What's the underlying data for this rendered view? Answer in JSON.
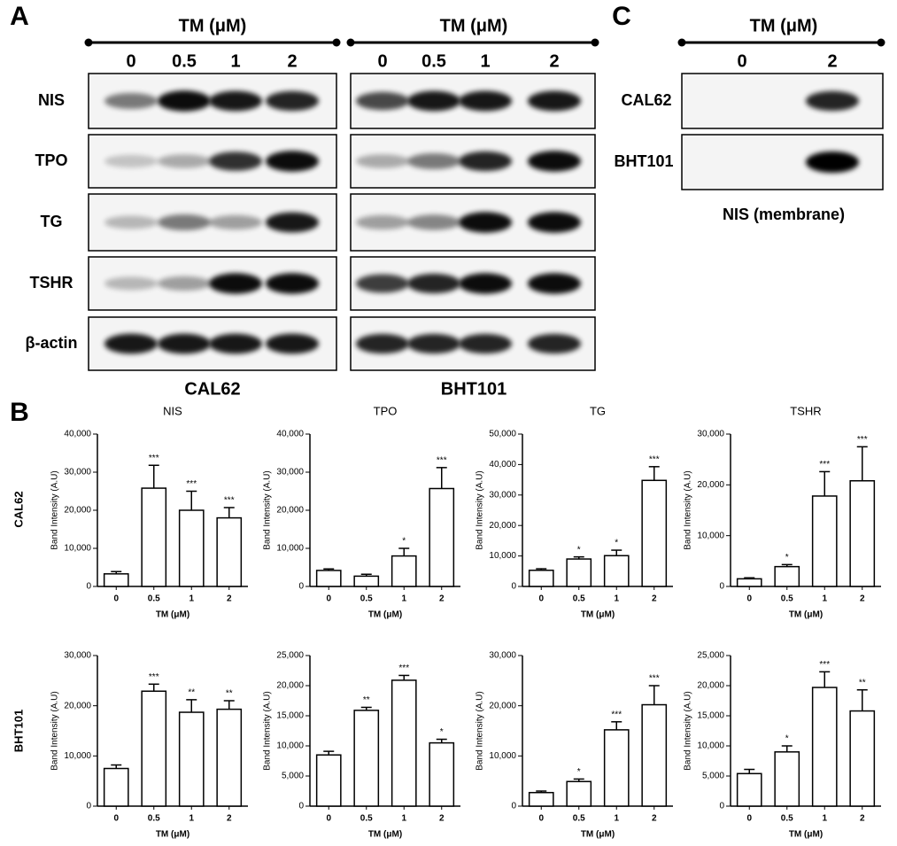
{
  "figure": {
    "panel_labels": [
      "A",
      "B",
      "C"
    ],
    "panel_a": {
      "header": "TM (μM)",
      "doses": [
        "0",
        "0.5",
        "1",
        "2"
      ],
      "rows": [
        "NIS",
        "TPO",
        "TG",
        "TSHR",
        "β-actin"
      ],
      "cell_lines": [
        "CAL62",
        "BHT101"
      ]
    },
    "panel_b": {
      "row_labels": [
        "CAL62",
        "BHT101"
      ]
    },
    "panel_c": {
      "header": "TM (μM)",
      "doses": [
        "0",
        "2"
      ],
      "rows": [
        "CAL62",
        "BHT101"
      ],
      "caption": "NIS (membrane)"
    }
  },
  "chart_data": [
    {
      "type": "bar",
      "title": "NIS",
      "ylabel": "Band Intensity (A.U)",
      "xlabel": "TM (μM)",
      "categories": [
        "0",
        "0.5",
        "1",
        "2"
      ],
      "values": [
        3300,
        25800,
        20000,
        18000
      ],
      "errors": [
        600,
        6000,
        5000,
        2700
      ],
      "annotations": [
        null,
        "***",
        "***",
        "***"
      ],
      "ylim": [
        0,
        40000
      ],
      "yticks": [
        0,
        {
          "value": 10000,
          "label": "10,000"
        },
        {
          "value": 20000,
          "label": "20,000"
        },
        {
          "value": 30000,
          "label": "30,000"
        },
        {
          "value": 40000,
          "label": "40,000"
        }
      ]
    },
    {
      "type": "bar",
      "title": "TPO",
      "ylabel": "Band Intensity (A.U)",
      "xlabel": "TM (μM)",
      "categories": [
        "0",
        "0.5",
        "1",
        "2"
      ],
      "values": [
        4200,
        2700,
        8000,
        25700
      ],
      "errors": [
        400,
        500,
        2000,
        5500
      ],
      "annotations": [
        null,
        null,
        "*",
        "***"
      ],
      "ylim": [
        0,
        40000
      ],
      "yticks": [
        0,
        {
          "value": 10000,
          "label": "10,000"
        },
        {
          "value": 20000,
          "label": "20,000"
        },
        {
          "value": 30000,
          "label": "30,000"
        },
        {
          "value": 40000,
          "label": "40,000"
        }
      ]
    },
    {
      "type": "bar",
      "title": "TG",
      "ylabel": "Band Intensity (A.U)",
      "xlabel": "TM (μM)",
      "categories": [
        "0",
        "0.5",
        "1",
        "2"
      ],
      "values": [
        5300,
        9000,
        10100,
        34800
      ],
      "errors": [
        500,
        700,
        1800,
        4500
      ],
      "annotations": [
        null,
        "*",
        "*",
        "***"
      ],
      "ylim": [
        0,
        50000
      ],
      "yticks": [
        0,
        {
          "value": 10000,
          "label": "10,000"
        },
        {
          "value": 20000,
          "label": "20,000"
        },
        {
          "value": 30000,
          "label": "30,000"
        },
        {
          "value": 40000,
          "label": "40,000"
        },
        {
          "value": 50000,
          "label": "50,000"
        }
      ]
    },
    {
      "type": "bar",
      "title": "TSHR",
      "ylabel": "Band Intensity (A.U)",
      "xlabel": "TM (μM)",
      "categories": [
        "0",
        "0.5",
        "1",
        "2"
      ],
      "values": [
        1500,
        3900,
        17800,
        20800
      ],
      "errors": [
        200,
        400,
        4800,
        6700
      ],
      "annotations": [
        null,
        "*",
        "***",
        "***"
      ],
      "ylim": [
        0,
        30000
      ],
      "yticks": [
        0,
        {
          "value": 10000,
          "label": "10,000"
        },
        {
          "value": 20000,
          "label": "20,000"
        },
        {
          "value": 30000,
          "label": "30,000"
        }
      ]
    },
    {
      "type": "bar",
      "ylabel": "Band Intensity (A.U)",
      "xlabel": "TM (μM)",
      "categories": [
        "0",
        "0.5",
        "1",
        "2"
      ],
      "values": [
        7500,
        22900,
        18700,
        19300
      ],
      "errors": [
        700,
        1400,
        2500,
        1700
      ],
      "annotations": [
        null,
        "***",
        "**",
        "**"
      ],
      "ylim": [
        0,
        30000
      ],
      "yticks": [
        0,
        {
          "value": 10000,
          "label": "10,000"
        },
        {
          "value": 20000,
          "label": "20,000"
        },
        {
          "value": 30000,
          "label": "30,000"
        }
      ]
    },
    {
      "type": "bar",
      "ylabel": "Band Intensity (A.U)",
      "xlabel": "TM (μM)",
      "categories": [
        "0",
        "0.5",
        "1",
        "2"
      ],
      "values": [
        8500,
        15900,
        20900,
        10500
      ],
      "errors": [
        600,
        500,
        800,
        600
      ],
      "annotations": [
        null,
        "**",
        "***",
        "*"
      ],
      "ylim": [
        0,
        25000
      ],
      "yticks": [
        0,
        {
          "value": 5000,
          "label": "5,000"
        },
        {
          "value": 10000,
          "label": "10,000"
        },
        {
          "value": 15000,
          "label": "15,000"
        },
        {
          "value": 20000,
          "label": "20,000"
        },
        {
          "value": 25000,
          "label": "25,000"
        }
      ]
    },
    {
      "type": "bar",
      "ylabel": "Band Intensity (A.U)",
      "xlabel": "TM (μM)",
      "categories": [
        "0",
        "0.5",
        "1",
        "2"
      ],
      "values": [
        2700,
        4900,
        15200,
        20200
      ],
      "errors": [
        300,
        500,
        1600,
        3800
      ],
      "annotations": [
        null,
        "*",
        "***",
        "***"
      ],
      "ylim": [
        0,
        30000
      ],
      "yticks": [
        0,
        {
          "value": 10000,
          "label": "10,000"
        },
        {
          "value": 20000,
          "label": "20,000"
        },
        {
          "value": 30000,
          "label": "30,000"
        }
      ]
    },
    {
      "type": "bar",
      "ylabel": "Band Intensity (A.U)",
      "xlabel": "TM (μM)",
      "categories": [
        "0",
        "0.5",
        "1",
        "2"
      ],
      "values": [
        5400,
        9000,
        19700,
        15800
      ],
      "errors": [
        700,
        1000,
        2600,
        3500
      ],
      "annotations": [
        null,
        "*",
        "***",
        "**"
      ],
      "ylim": [
        0,
        25000
      ],
      "yticks": [
        0,
        {
          "value": 5000,
          "label": "5,000"
        },
        {
          "value": 10000,
          "label": "10,000"
        },
        {
          "value": 15000,
          "label": "15,000"
        },
        {
          "value": 20000,
          "label": "20,000"
        },
        {
          "value": 25000,
          "label": "25,000"
        }
      ]
    }
  ]
}
